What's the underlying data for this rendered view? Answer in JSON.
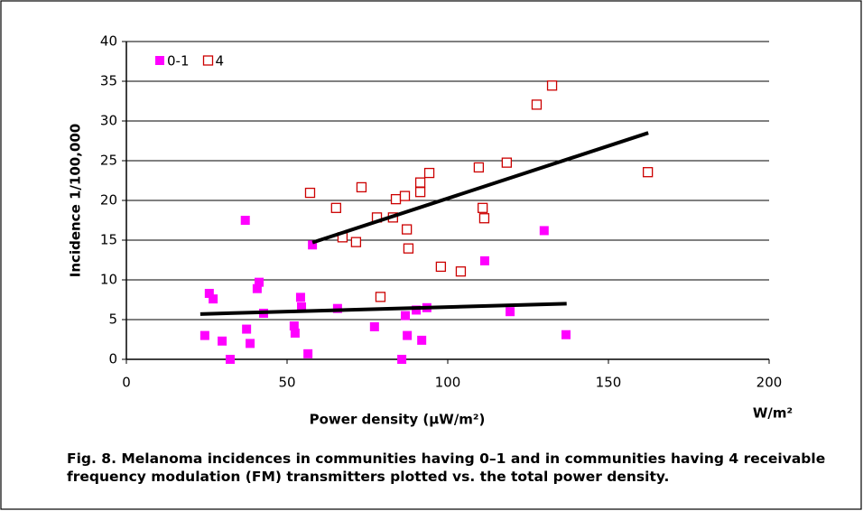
{
  "chart_data": {
    "type": "scatter",
    "x_label": "Power density (µW/m²)",
    "x_unit": "W/m²",
    "y_label": "Incidence 1/100,000",
    "caption": "Fig. 8. Melanoma incidences in communities having 0–1 and in communities having 4 receivable frequency modulation (FM) transmitters plotted vs. the total power density.",
    "xlim": [
      0,
      200
    ],
    "xticks": [
      0,
      50,
      100,
      150,
      200
    ],
    "ylim": [
      0,
      40
    ],
    "yticks": [
      0,
      5,
      10,
      15,
      20,
      25,
      30,
      35,
      40
    ],
    "grid": true,
    "legend": "top-left",
    "series": [
      {
        "name": "0-1",
        "color": "#ff00ff",
        "marker": "filled-square",
        "x": [
          24.4,
          25.8,
          27,
          29.8,
          32.3,
          37,
          37.4,
          38.5,
          40.7,
          41.3,
          42.7,
          52.2,
          52.5,
          54.2,
          54.5,
          56.5,
          57.9,
          65.7,
          77.2,
          85.7,
          86.8,
          87.4,
          90.2,
          91.9,
          93.5,
          111.5,
          119.4,
          130,
          136.8
        ],
        "values": [
          3.0,
          8.3,
          7.6,
          2.3,
          0,
          17.5,
          3.8,
          2.0,
          8.9,
          9.7,
          5.8,
          4.2,
          3.3,
          7.8,
          6.6,
          0.7,
          14.4,
          6.4,
          4.1,
          0,
          5.5,
          3.0,
          6.2,
          2.4,
          6.5,
          12.4,
          6.0,
          16.2,
          3.1
        ]
      },
      {
        "name": "4",
        "color": "#cc0000",
        "marker": "hollow-square",
        "x": [
          57.3,
          65.4,
          67.4,
          71.6,
          73.3,
          78.1,
          79.2,
          83.1,
          84,
          86.8,
          87.4,
          87.9,
          91.6,
          91.6,
          94.4,
          98,
          104.2,
          109.8,
          111,
          111.5,
          118.5,
          127.8,
          132.6,
          162.4
        ],
        "values": [
          20.9,
          19.0,
          15.3,
          14.7,
          21.6,
          17.8,
          7.8,
          17.8,
          20.1,
          20.5,
          16.3,
          13.9,
          22.2,
          21.0,
          23.4,
          11.6,
          11.0,
          24.1,
          19.0,
          17.7,
          24.7,
          32.0,
          34.4,
          23.5
        ]
      }
    ],
    "trendlines": [
      {
        "color": "#000000",
        "x": [
          23,
          137
        ],
        "values": [
          5.7,
          7.0
        ]
      },
      {
        "color": "#000000",
        "x": [
          57.9,
          162.4
        ],
        "values": [
          14.7,
          28.5
        ]
      }
    ]
  }
}
